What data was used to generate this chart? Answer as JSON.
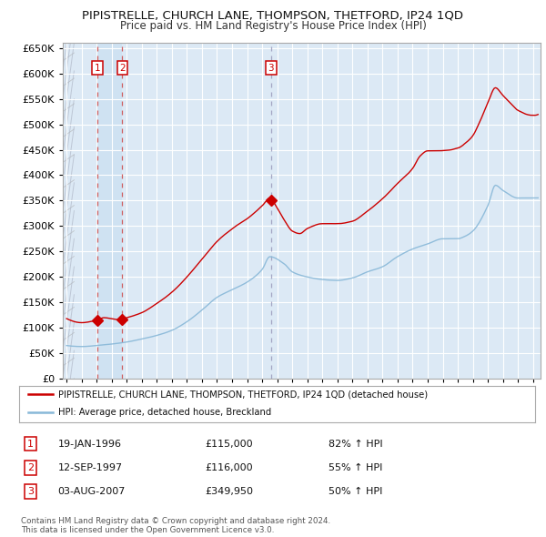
{
  "title": "PIPISTRELLE, CHURCH LANE, THOMPSON, THETFORD, IP24 1QD",
  "subtitle": "Price paid vs. HM Land Registry's House Price Index (HPI)",
  "background_color": "#ffffff",
  "plot_bg_color": "#dce9f5",
  "grid_color": "#ffffff",
  "sale_color": "#cc0000",
  "hpi_color": "#88b8d8",
  "ylim": [
    0,
    660000
  ],
  "yticks": [
    0,
    50000,
    100000,
    150000,
    200000,
    250000,
    300000,
    350000,
    400000,
    450000,
    500000,
    550000,
    600000,
    650000
  ],
  "xlim": [
    1993.75,
    2025.5
  ],
  "sales": [
    {
      "date_num": 1996.05,
      "price": 115000,
      "label": "1"
    },
    {
      "date_num": 1997.71,
      "price": 116000,
      "label": "2"
    },
    {
      "date_num": 2007.59,
      "price": 349950,
      "label": "3"
    }
  ],
  "vlines_red": [
    1996.05,
    1997.71
  ],
  "vlines_gray": [
    2007.59
  ],
  "legend_sale_label": "PIPISTRELLE, CHURCH LANE, THOMPSON, THETFORD, IP24 1QD (detached house)",
  "legend_hpi_label": "HPI: Average price, detached house, Breckland",
  "table_rows": [
    {
      "num": "1",
      "date": "19-JAN-1996",
      "price": "£115,000",
      "pct": "82% ↑ HPI"
    },
    {
      "num": "2",
      "date": "12-SEP-1997",
      "price": "£116,000",
      "pct": "55% ↑ HPI"
    },
    {
      "num": "3",
      "date": "03-AUG-2007",
      "price": "£349,950",
      "pct": "50% ↑ HPI"
    }
  ],
  "footer": "Contains HM Land Registry data © Crown copyright and database right 2024.\nThis data is licensed under the Open Government Licence v3.0."
}
